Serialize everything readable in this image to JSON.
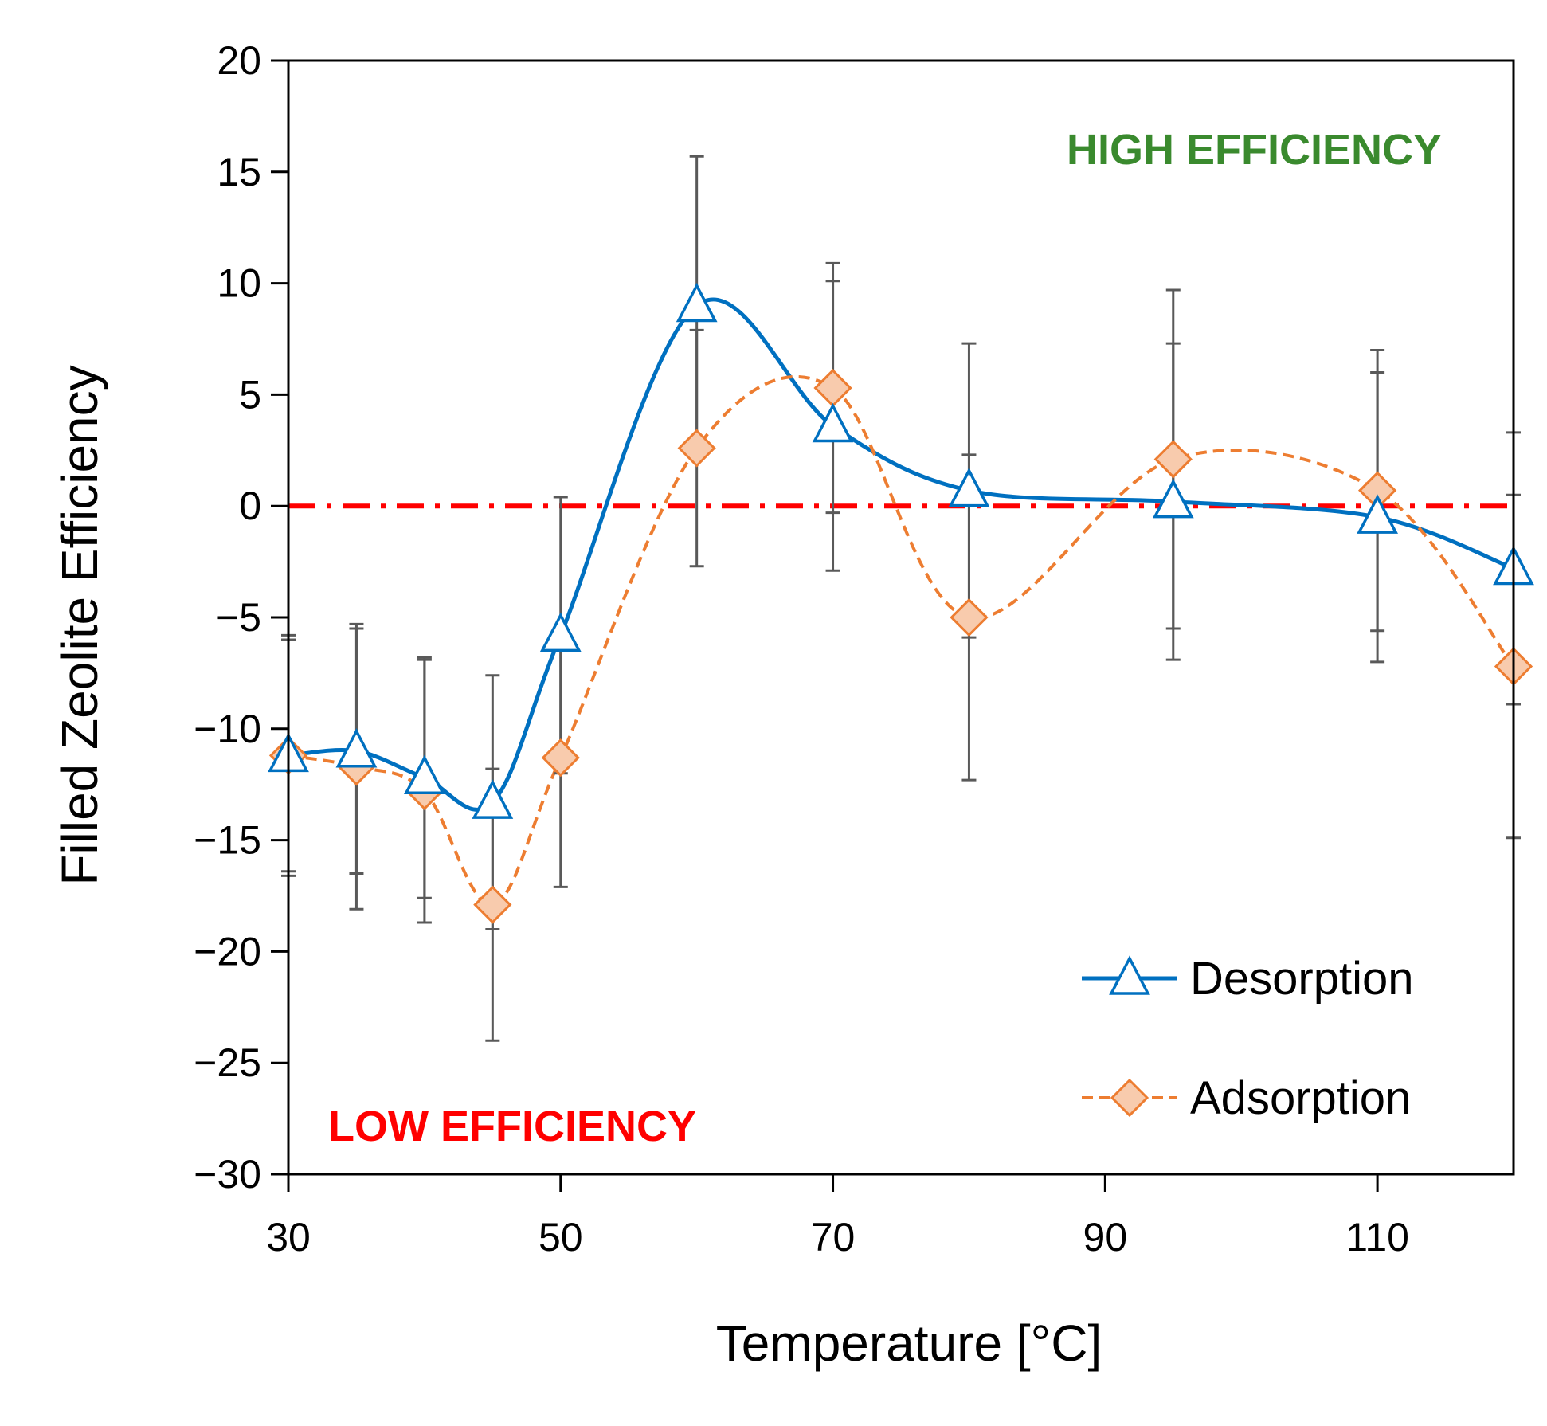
{
  "chart_data": {
    "type": "line",
    "title": "",
    "xlabel": "Temperature [°C]",
    "ylabel": "Filled Zeolite Efficiency",
    "xlim": [
      30,
      120
    ],
    "ylim": [
      -30,
      20
    ],
    "xticks": [
      30,
      50,
      70,
      90,
      110
    ],
    "xtick_labels": [
      "30",
      "50",
      "70",
      "90",
      "110"
    ],
    "yticks": [
      20,
      15,
      10,
      5,
      0,
      -5,
      -10,
      -15,
      -20,
      -25,
      -30
    ],
    "ytick_labels": [
      "20",
      "15",
      "10",
      "5",
      "0",
      "−5",
      "−10",
      "−15",
      "−20",
      "−25",
      "−30"
    ],
    "grid": false,
    "legend_position": "bottom-right",
    "reference_line": {
      "y": 0,
      "color": "#ff0000",
      "style": "dash-dot"
    },
    "series": [
      {
        "name": "Desorption",
        "color": "#0070c0",
        "marker": "triangle",
        "line_style": "solid",
        "x": [
          30,
          35,
          40,
          45,
          50,
          60,
          70,
          80,
          95,
          110,
          120
        ],
        "y": [
          -11.2,
          -11.0,
          -12.2,
          -13.3,
          -5.8,
          9.0,
          3.6,
          0.7,
          0.2,
          -0.5,
          -2.8
        ],
        "err": [
          5.4,
          5.5,
          5.4,
          5.7,
          6.2,
          6.7,
          6.5,
          6.6,
          7.1,
          6.5,
          6.1
        ]
      },
      {
        "name": "Adsorption",
        "color": "#ed7d31",
        "marker_fill": "#f8cbad",
        "marker": "diamond",
        "line_style": "dashed",
        "x": [
          30,
          35,
          40,
          45,
          50,
          60,
          70,
          80,
          95,
          110,
          120
        ],
        "y": [
          -11.2,
          -11.7,
          -12.8,
          -17.9,
          -11.3,
          2.6,
          5.3,
          -5.0,
          2.1,
          0.7,
          -7.2
        ],
        "err": [
          5.2,
          6.4,
          5.9,
          6.1,
          5.8,
          5.3,
          5.6,
          7.3,
          7.6,
          6.3,
          7.7
        ]
      }
    ],
    "annotations": [
      {
        "text": "HIGH EFFICIENCY",
        "color": "#3a8a2e",
        "position": "top-right"
      },
      {
        "text": "LOW EFFICIENCY",
        "color": "#ff0000",
        "position": "bottom-left"
      }
    ]
  }
}
